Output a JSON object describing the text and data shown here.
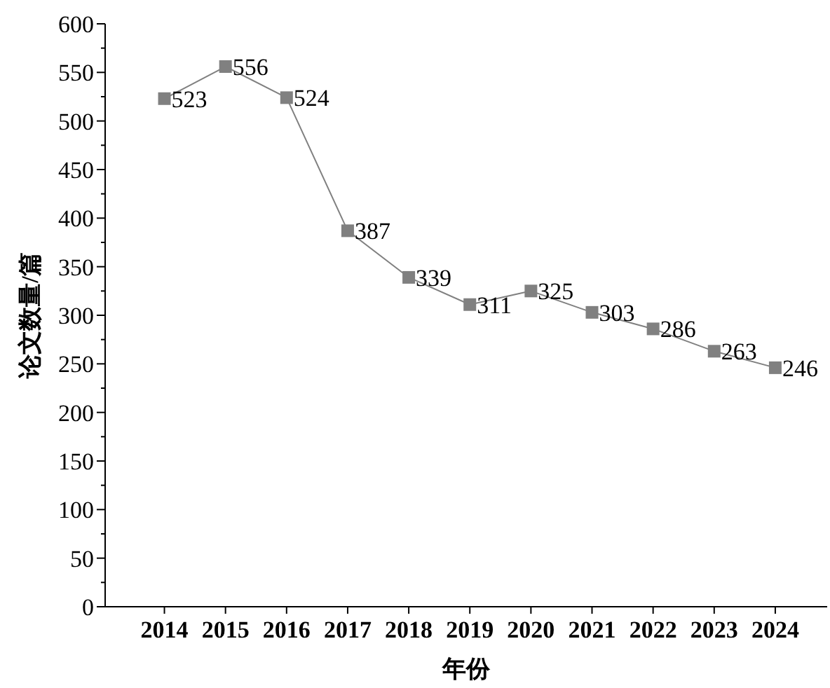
{
  "chart_data": {
    "type": "line",
    "xlabel": "年份",
    "ylabel": "论文数量/篇",
    "categories": [
      "2014",
      "2015",
      "2016",
      "2017",
      "2018",
      "2019",
      "2020",
      "2021",
      "2022",
      "2023",
      "2024"
    ],
    "series": [
      {
        "color": "#808080",
        "values": [
          523,
          556,
          524,
          387,
          339,
          311,
          325,
          303,
          286,
          263,
          246
        ]
      }
    ],
    "ylim": [
      0,
      600
    ],
    "yticks": [
      0,
      {
        "value": 25,
        "label": null
      },
      50,
      {
        "value": 75,
        "label": null
      },
      100,
      {
        "value": 125,
        "label": null
      },
      150,
      {
        "value": 175,
        "label": null
      },
      200,
      {
        "value": 225,
        "label": null
      },
      250,
      {
        "value": 275,
        "label": null
      },
      300,
      {
        "value": 325,
        "label": null
      },
      350,
      {
        "value": 375,
        "label": null
      },
      400,
      {
        "value": 425,
        "label": null
      },
      450,
      {
        "value": 475,
        "label": null
      },
      500,
      {
        "value": 525,
        "label": null
      },
      550,
      {
        "value": 575,
        "label": null
      },
      600
    ],
    "marker": "square",
    "line_style": "solid",
    "data_labels": true,
    "grid": false
  }
}
